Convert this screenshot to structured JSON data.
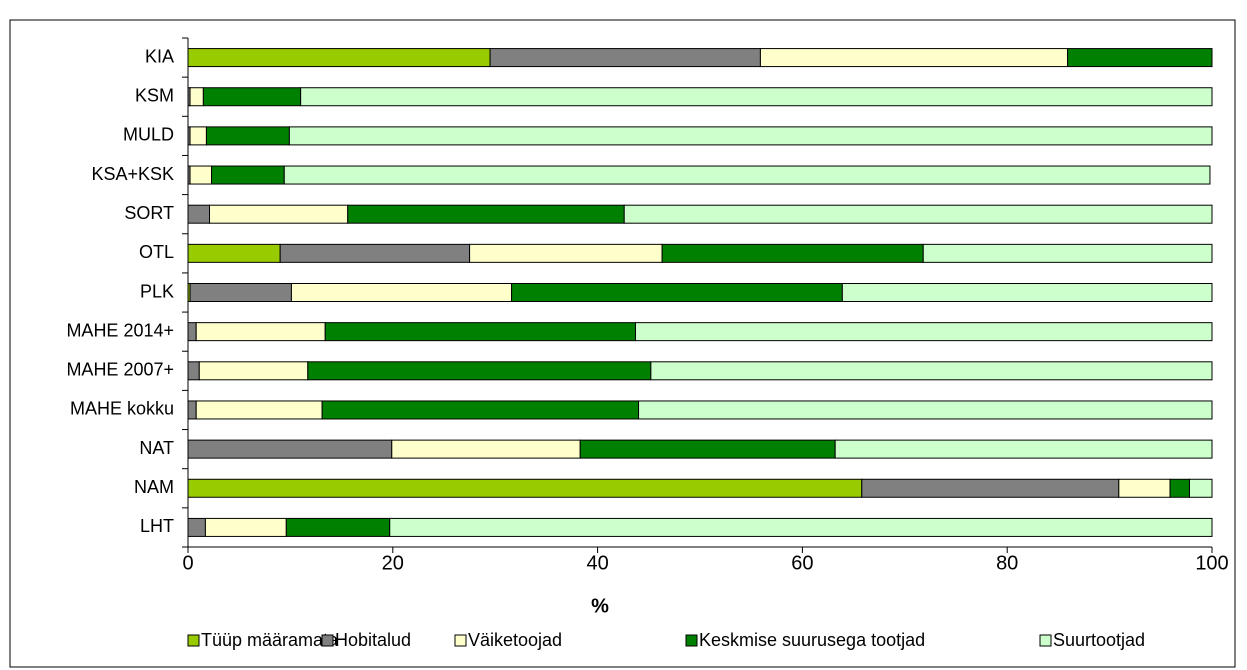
{
  "chart_data": {
    "type": "bar",
    "orientation": "horizontal",
    "stacked": true,
    "xlabel": "%",
    "categories": [
      "KIA",
      "KSM",
      "MULD",
      "KSA+KSK",
      "SORT",
      "OTL",
      "PLK",
      "MAHE 2014+",
      "MAHE 2007+",
      "MAHE kokku",
      "NAT",
      "NAM",
      "LHT"
    ],
    "xlim": [
      0,
      100
    ],
    "xticks": [
      0,
      20,
      40,
      60,
      80,
      100
    ],
    "legend": "bottom",
    "series": [
      {
        "name": "Tüüp määramata",
        "color": "#99cc00",
        "values": [
          29.5,
          0,
          0,
          0,
          0,
          9.0,
          0.2,
          0,
          0,
          0,
          0,
          65.8,
          0
        ]
      },
      {
        "name": "Hobitalud",
        "color": "#808080",
        "values": [
          26.4,
          0.2,
          0.2,
          0.2,
          2.1,
          18.5,
          9.9,
          0.8,
          1.1,
          0.8,
          19.9,
          25.1,
          1.7
        ]
      },
      {
        "name": "Väiketoojad",
        "color": "#ffffcc",
        "values": [
          30.0,
          1.3,
          1.6,
          2.1,
          13.5,
          18.8,
          21.5,
          12.6,
          10.6,
          12.3,
          18.4,
          5.0,
          7.9
        ]
      },
      {
        "name": "Keskmise suurusega tootjad",
        "color": "#008000",
        "values": [
          14.1,
          9.5,
          8.1,
          7.1,
          27.0,
          25.5,
          32.3,
          30.3,
          33.5,
          30.9,
          24.9,
          1.9,
          10.1
        ]
      },
      {
        "name": "Suurtootjad",
        "color": "#ccffcc",
        "values": [
          0,
          89.0,
          90.1,
          90.4,
          57.4,
          28.2,
          36.1,
          56.3,
          54.8,
          56.0,
          36.8,
          2.2,
          80.3
        ]
      }
    ]
  }
}
